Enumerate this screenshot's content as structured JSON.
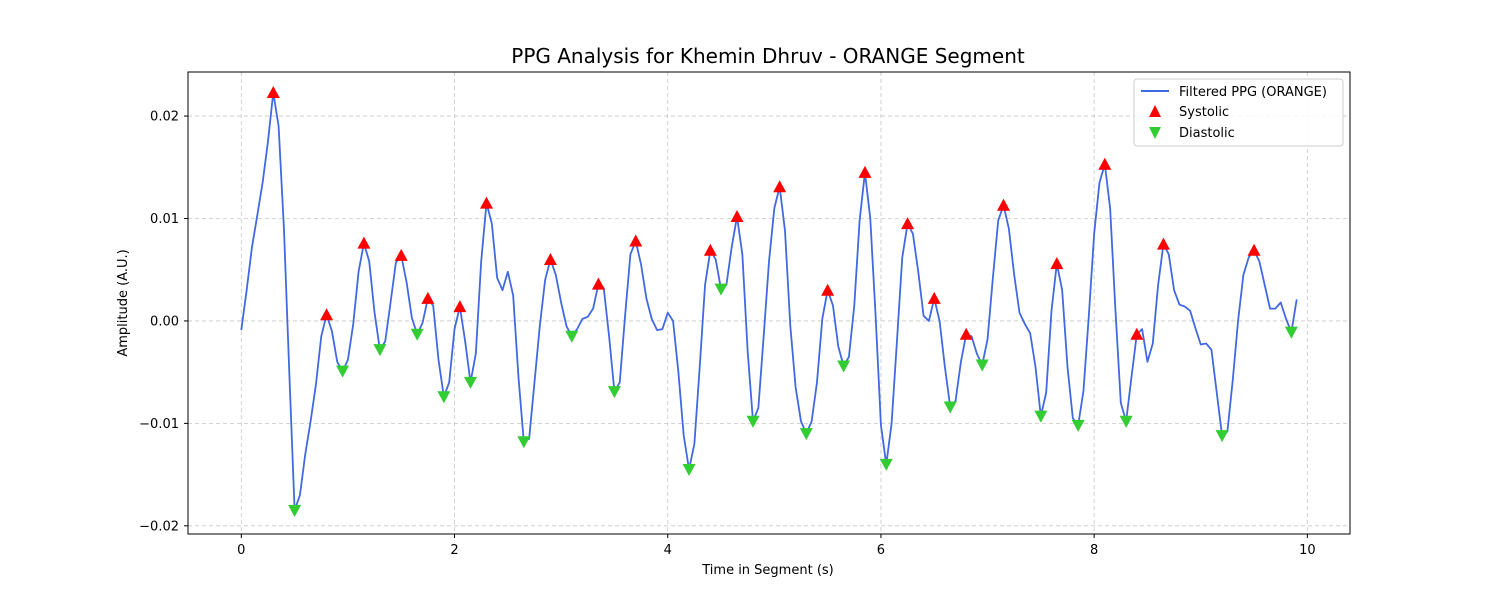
{
  "chart_data": {
    "type": "line",
    "title": "PPG Analysis for Khemin Dhruv - ORANGE Segment",
    "xlabel": "Time in Segment (s)",
    "ylabel": "Amplitude (A.U.)",
    "xlim": [
      -0.5,
      10.4
    ],
    "ylim": [
      -0.0208,
      0.0243
    ],
    "x_ticks": [
      0,
      2,
      4,
      6,
      8,
      10
    ],
    "x_tick_labels": [
      "0",
      "2",
      "4",
      "6",
      "8",
      "10"
    ],
    "y_ticks": [
      -0.02,
      -0.01,
      0.0,
      0.01,
      0.02
    ],
    "y_tick_labels": [
      "−0.02",
      "−0.01",
      "0.00",
      "0.01",
      "0.02"
    ],
    "grid": true,
    "legend_position": "top-right",
    "colors": {
      "line": "#4169e1",
      "systolic": "#ff0000",
      "diastolic": "#32cd32"
    },
    "series": [
      {
        "name": "Filtered PPG (ORANGE)",
        "kind": "line",
        "points": [
          [
            0.0,
            -0.0009
          ],
          [
            0.05,
            0.003
          ],
          [
            0.1,
            0.0072
          ],
          [
            0.15,
            0.0103
          ],
          [
            0.2,
            0.0135
          ],
          [
            0.25,
            0.0175
          ],
          [
            0.3,
            0.0223
          ],
          [
            0.35,
            0.019
          ],
          [
            0.4,
            0.009
          ],
          [
            0.45,
            -0.005
          ],
          [
            0.5,
            -0.0185
          ],
          [
            0.55,
            -0.017
          ],
          [
            0.6,
            -0.013
          ],
          [
            0.65,
            -0.0098
          ],
          [
            0.7,
            -0.0062
          ],
          [
            0.75,
            -0.0015
          ],
          [
            0.8,
            0.0006
          ],
          [
            0.85,
            -0.001
          ],
          [
            0.9,
            -0.004
          ],
          [
            0.95,
            -0.0049
          ],
          [
            1.0,
            -0.0038
          ],
          [
            1.05,
            -0.0003
          ],
          [
            1.1,
            0.0048
          ],
          [
            1.15,
            0.0076
          ],
          [
            1.2,
            0.0058
          ],
          [
            1.25,
            0.0008
          ],
          [
            1.3,
            -0.0028
          ],
          [
            1.35,
            -0.002
          ],
          [
            1.4,
            0.0018
          ],
          [
            1.45,
            0.0057
          ],
          [
            1.5,
            0.0064
          ],
          [
            1.55,
            0.0038
          ],
          [
            1.6,
            0.0003
          ],
          [
            1.65,
            -0.0013
          ],
          [
            1.7,
            -0.0002
          ],
          [
            1.75,
            0.0022
          ],
          [
            1.8,
            0.0015
          ],
          [
            1.85,
            -0.0038
          ],
          [
            1.9,
            -0.0074
          ],
          [
            1.95,
            -0.006
          ],
          [
            2.0,
            -0.0008
          ],
          [
            2.05,
            0.0014
          ],
          [
            2.1,
            -0.002
          ],
          [
            2.15,
            -0.006
          ],
          [
            2.2,
            -0.0032
          ],
          [
            2.25,
            0.0058
          ],
          [
            2.3,
            0.0115
          ],
          [
            2.35,
            0.0095
          ],
          [
            2.4,
            0.0042
          ],
          [
            2.45,
            0.003
          ],
          [
            2.5,
            0.0048
          ],
          [
            2.55,
            0.0025
          ],
          [
            2.6,
            -0.0055
          ],
          [
            2.65,
            -0.0118
          ],
          [
            2.7,
            -0.0115
          ],
          [
            2.75,
            -0.006
          ],
          [
            2.8,
            -0.0005
          ],
          [
            2.85,
            0.004
          ],
          [
            2.9,
            0.006
          ],
          [
            2.95,
            0.0045
          ],
          [
            3.0,
            0.0018
          ],
          [
            3.05,
            -0.0005
          ],
          [
            3.1,
            -0.0015
          ],
          [
            3.15,
            -0.0008
          ],
          [
            3.2,
            0.0002
          ],
          [
            3.25,
            0.0004
          ],
          [
            3.3,
            0.0012
          ],
          [
            3.35,
            0.0036
          ],
          [
            3.4,
            0.0032
          ],
          [
            3.45,
            -0.0015
          ],
          [
            3.5,
            -0.0069
          ],
          [
            3.55,
            -0.006
          ],
          [
            3.6,
            0.0005
          ],
          [
            3.65,
            0.0065
          ],
          [
            3.7,
            0.0078
          ],
          [
            3.75,
            0.0055
          ],
          [
            3.8,
            0.0022
          ],
          [
            3.85,
            0.0002
          ],
          [
            3.9,
            -0.0009
          ],
          [
            3.95,
            -0.0008
          ],
          [
            4.0,
            0.0008
          ],
          [
            4.05,
            0.0
          ],
          [
            4.1,
            -0.005
          ],
          [
            4.15,
            -0.0112
          ],
          [
            4.2,
            -0.0145
          ],
          [
            4.25,
            -0.012
          ],
          [
            4.3,
            -0.0045
          ],
          [
            4.35,
            0.0035
          ],
          [
            4.4,
            0.0069
          ],
          [
            4.45,
            0.006
          ],
          [
            4.5,
            0.0031
          ],
          [
            4.55,
            0.0035
          ],
          [
            4.6,
            0.0072
          ],
          [
            4.65,
            0.0102
          ],
          [
            4.7,
            0.0065
          ],
          [
            4.75,
            -0.003
          ],
          [
            4.8,
            -0.0098
          ],
          [
            4.85,
            -0.0085
          ],
          [
            4.9,
            -0.0015
          ],
          [
            4.95,
            0.0058
          ],
          [
            5.0,
            0.011
          ],
          [
            5.05,
            0.0131
          ],
          [
            5.1,
            0.0088
          ],
          [
            5.15,
            -0.0005
          ],
          [
            5.2,
            -0.0065
          ],
          [
            5.25,
            -0.0098
          ],
          [
            5.3,
            -0.011
          ],
          [
            5.35,
            -0.0098
          ],
          [
            5.4,
            -0.006
          ],
          [
            5.45,
            0.0002
          ],
          [
            5.5,
            0.003
          ],
          [
            5.55,
            0.0015
          ],
          [
            5.6,
            -0.0025
          ],
          [
            5.65,
            -0.0044
          ],
          [
            5.7,
            -0.0035
          ],
          [
            5.75,
            0.0015
          ],
          [
            5.8,
            0.0098
          ],
          [
            5.85,
            0.0145
          ],
          [
            5.9,
            0.01
          ],
          [
            5.95,
            0.0005
          ],
          [
            6.0,
            -0.0102
          ],
          [
            6.05,
            -0.014
          ],
          [
            6.1,
            -0.01
          ],
          [
            6.15,
            -0.002
          ],
          [
            6.2,
            0.0062
          ],
          [
            6.25,
            0.0095
          ],
          [
            6.3,
            0.0085
          ],
          [
            6.35,
            0.0048
          ],
          [
            6.4,
            0.0005
          ],
          [
            6.45,
            0.0
          ],
          [
            6.5,
            0.0022
          ],
          [
            6.55,
            0.0
          ],
          [
            6.6,
            -0.0045
          ],
          [
            6.65,
            -0.0084
          ],
          [
            6.7,
            -0.0078
          ],
          [
            6.75,
            -0.004
          ],
          [
            6.8,
            -0.0013
          ],
          [
            6.85,
            -0.0015
          ],
          [
            6.9,
            -0.0032
          ],
          [
            6.95,
            -0.0043
          ],
          [
            7.0,
            -0.0018
          ],
          [
            7.05,
            0.0042
          ],
          [
            7.1,
            0.0098
          ],
          [
            7.15,
            0.0113
          ],
          [
            7.2,
            0.009
          ],
          [
            7.25,
            0.0045
          ],
          [
            7.3,
            0.0008
          ],
          [
            7.35,
            -0.0003
          ],
          [
            7.4,
            -0.0012
          ],
          [
            7.45,
            -0.0045
          ],
          [
            7.5,
            -0.0093
          ],
          [
            7.55,
            -0.007
          ],
          [
            7.6,
            0.001
          ],
          [
            7.65,
            0.0056
          ],
          [
            7.7,
            0.003
          ],
          [
            7.75,
            -0.0045
          ],
          [
            7.8,
            -0.0095
          ],
          [
            7.85,
            -0.0102
          ],
          [
            7.9,
            -0.0068
          ],
          [
            7.95,
            0.0005
          ],
          [
            8.0,
            0.0085
          ],
          [
            8.05,
            0.0135
          ],
          [
            8.1,
            0.0153
          ],
          [
            8.15,
            0.011
          ],
          [
            8.2,
            0.001
          ],
          [
            8.25,
            -0.008
          ],
          [
            8.3,
            -0.0098
          ],
          [
            8.35,
            -0.0055
          ],
          [
            8.4,
            -0.0013
          ],
          [
            8.45,
            -0.0008
          ],
          [
            8.5,
            -0.004
          ],
          [
            8.55,
            -0.0022
          ],
          [
            8.6,
            0.0035
          ],
          [
            8.65,
            0.0075
          ],
          [
            8.7,
            0.0065
          ],
          [
            8.75,
            0.003
          ],
          [
            8.8,
            0.0016
          ],
          [
            8.85,
            0.0014
          ],
          [
            8.9,
            0.001
          ],
          [
            8.95,
            -0.0007
          ],
          [
            9.0,
            -0.0023
          ],
          [
            9.05,
            -0.0022
          ],
          [
            9.1,
            -0.0028
          ],
          [
            9.15,
            -0.007
          ],
          [
            9.2,
            -0.0112
          ],
          [
            9.25,
            -0.0108
          ],
          [
            9.3,
            -0.0058
          ],
          [
            9.35,
            0.0
          ],
          [
            9.4,
            0.0045
          ],
          [
            9.45,
            0.0062
          ],
          [
            9.5,
            0.0069
          ],
          [
            9.55,
            0.0058
          ],
          [
            9.6,
            0.0035
          ],
          [
            9.65,
            0.0012
          ],
          [
            9.7,
            0.0012
          ],
          [
            9.75,
            0.0018
          ],
          [
            9.8,
            0.0002
          ],
          [
            9.85,
            -0.0011
          ],
          [
            9.9,
            0.0021
          ]
        ]
      },
      {
        "name": "Systolic",
        "kind": "marker-up",
        "points": [
          [
            0.3,
            0.0223
          ],
          [
            0.8,
            0.0006
          ],
          [
            1.15,
            0.0076
          ],
          [
            1.5,
            0.0064
          ],
          [
            1.75,
            0.0022
          ],
          [
            2.05,
            0.0014
          ],
          [
            2.3,
            0.0115
          ],
          [
            2.9,
            0.006
          ],
          [
            3.35,
            0.0036
          ],
          [
            3.7,
            0.0078
          ],
          [
            4.4,
            0.0069
          ],
          [
            4.65,
            0.0102
          ],
          [
            5.05,
            0.0131
          ],
          [
            5.5,
            0.003
          ],
          [
            5.85,
            0.0145
          ],
          [
            6.25,
            0.0095
          ],
          [
            6.5,
            0.0022
          ],
          [
            6.8,
            -0.0013
          ],
          [
            7.15,
            0.0113
          ],
          [
            7.65,
            0.0056
          ],
          [
            8.1,
            0.0153
          ],
          [
            8.4,
            -0.0013
          ],
          [
            8.65,
            0.0075
          ],
          [
            9.5,
            0.0069
          ]
        ]
      },
      {
        "name": "Diastolic",
        "kind": "marker-down",
        "points": [
          [
            0.5,
            -0.0185
          ],
          [
            0.95,
            -0.0049
          ],
          [
            1.3,
            -0.0028
          ],
          [
            1.65,
            -0.0013
          ],
          [
            1.9,
            -0.0074
          ],
          [
            2.15,
            -0.006
          ],
          [
            2.65,
            -0.0118
          ],
          [
            3.1,
            -0.0015
          ],
          [
            3.5,
            -0.0069
          ],
          [
            4.2,
            -0.0145
          ],
          [
            4.5,
            0.0031
          ],
          [
            4.8,
            -0.0098
          ],
          [
            5.3,
            -0.011
          ],
          [
            5.65,
            -0.0044
          ],
          [
            6.05,
            -0.014
          ],
          [
            6.65,
            -0.0084
          ],
          [
            6.95,
            -0.0043
          ],
          [
            7.5,
            -0.0093
          ],
          [
            7.85,
            -0.0102
          ],
          [
            8.3,
            -0.0098
          ],
          [
            9.2,
            -0.0112
          ],
          [
            9.85,
            -0.0011
          ]
        ]
      }
    ]
  }
}
